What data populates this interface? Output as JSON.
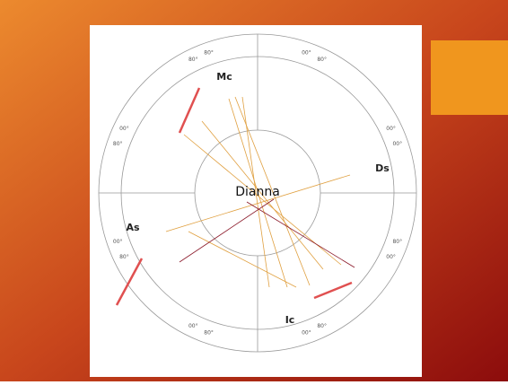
{
  "slide": {
    "chart_label": "Dianna",
    "angles": [
      "As",
      "Mc",
      "Ds",
      "Ic"
    ],
    "ring_labels": [
      "80°",
      "00°",
      "80°",
      "00°",
      "00°",
      "80°",
      "00°",
      "80°",
      "00°",
      "80°",
      "00°",
      "80°",
      "00°",
      "80°",
      "00°",
      "80°"
    ]
  }
}
